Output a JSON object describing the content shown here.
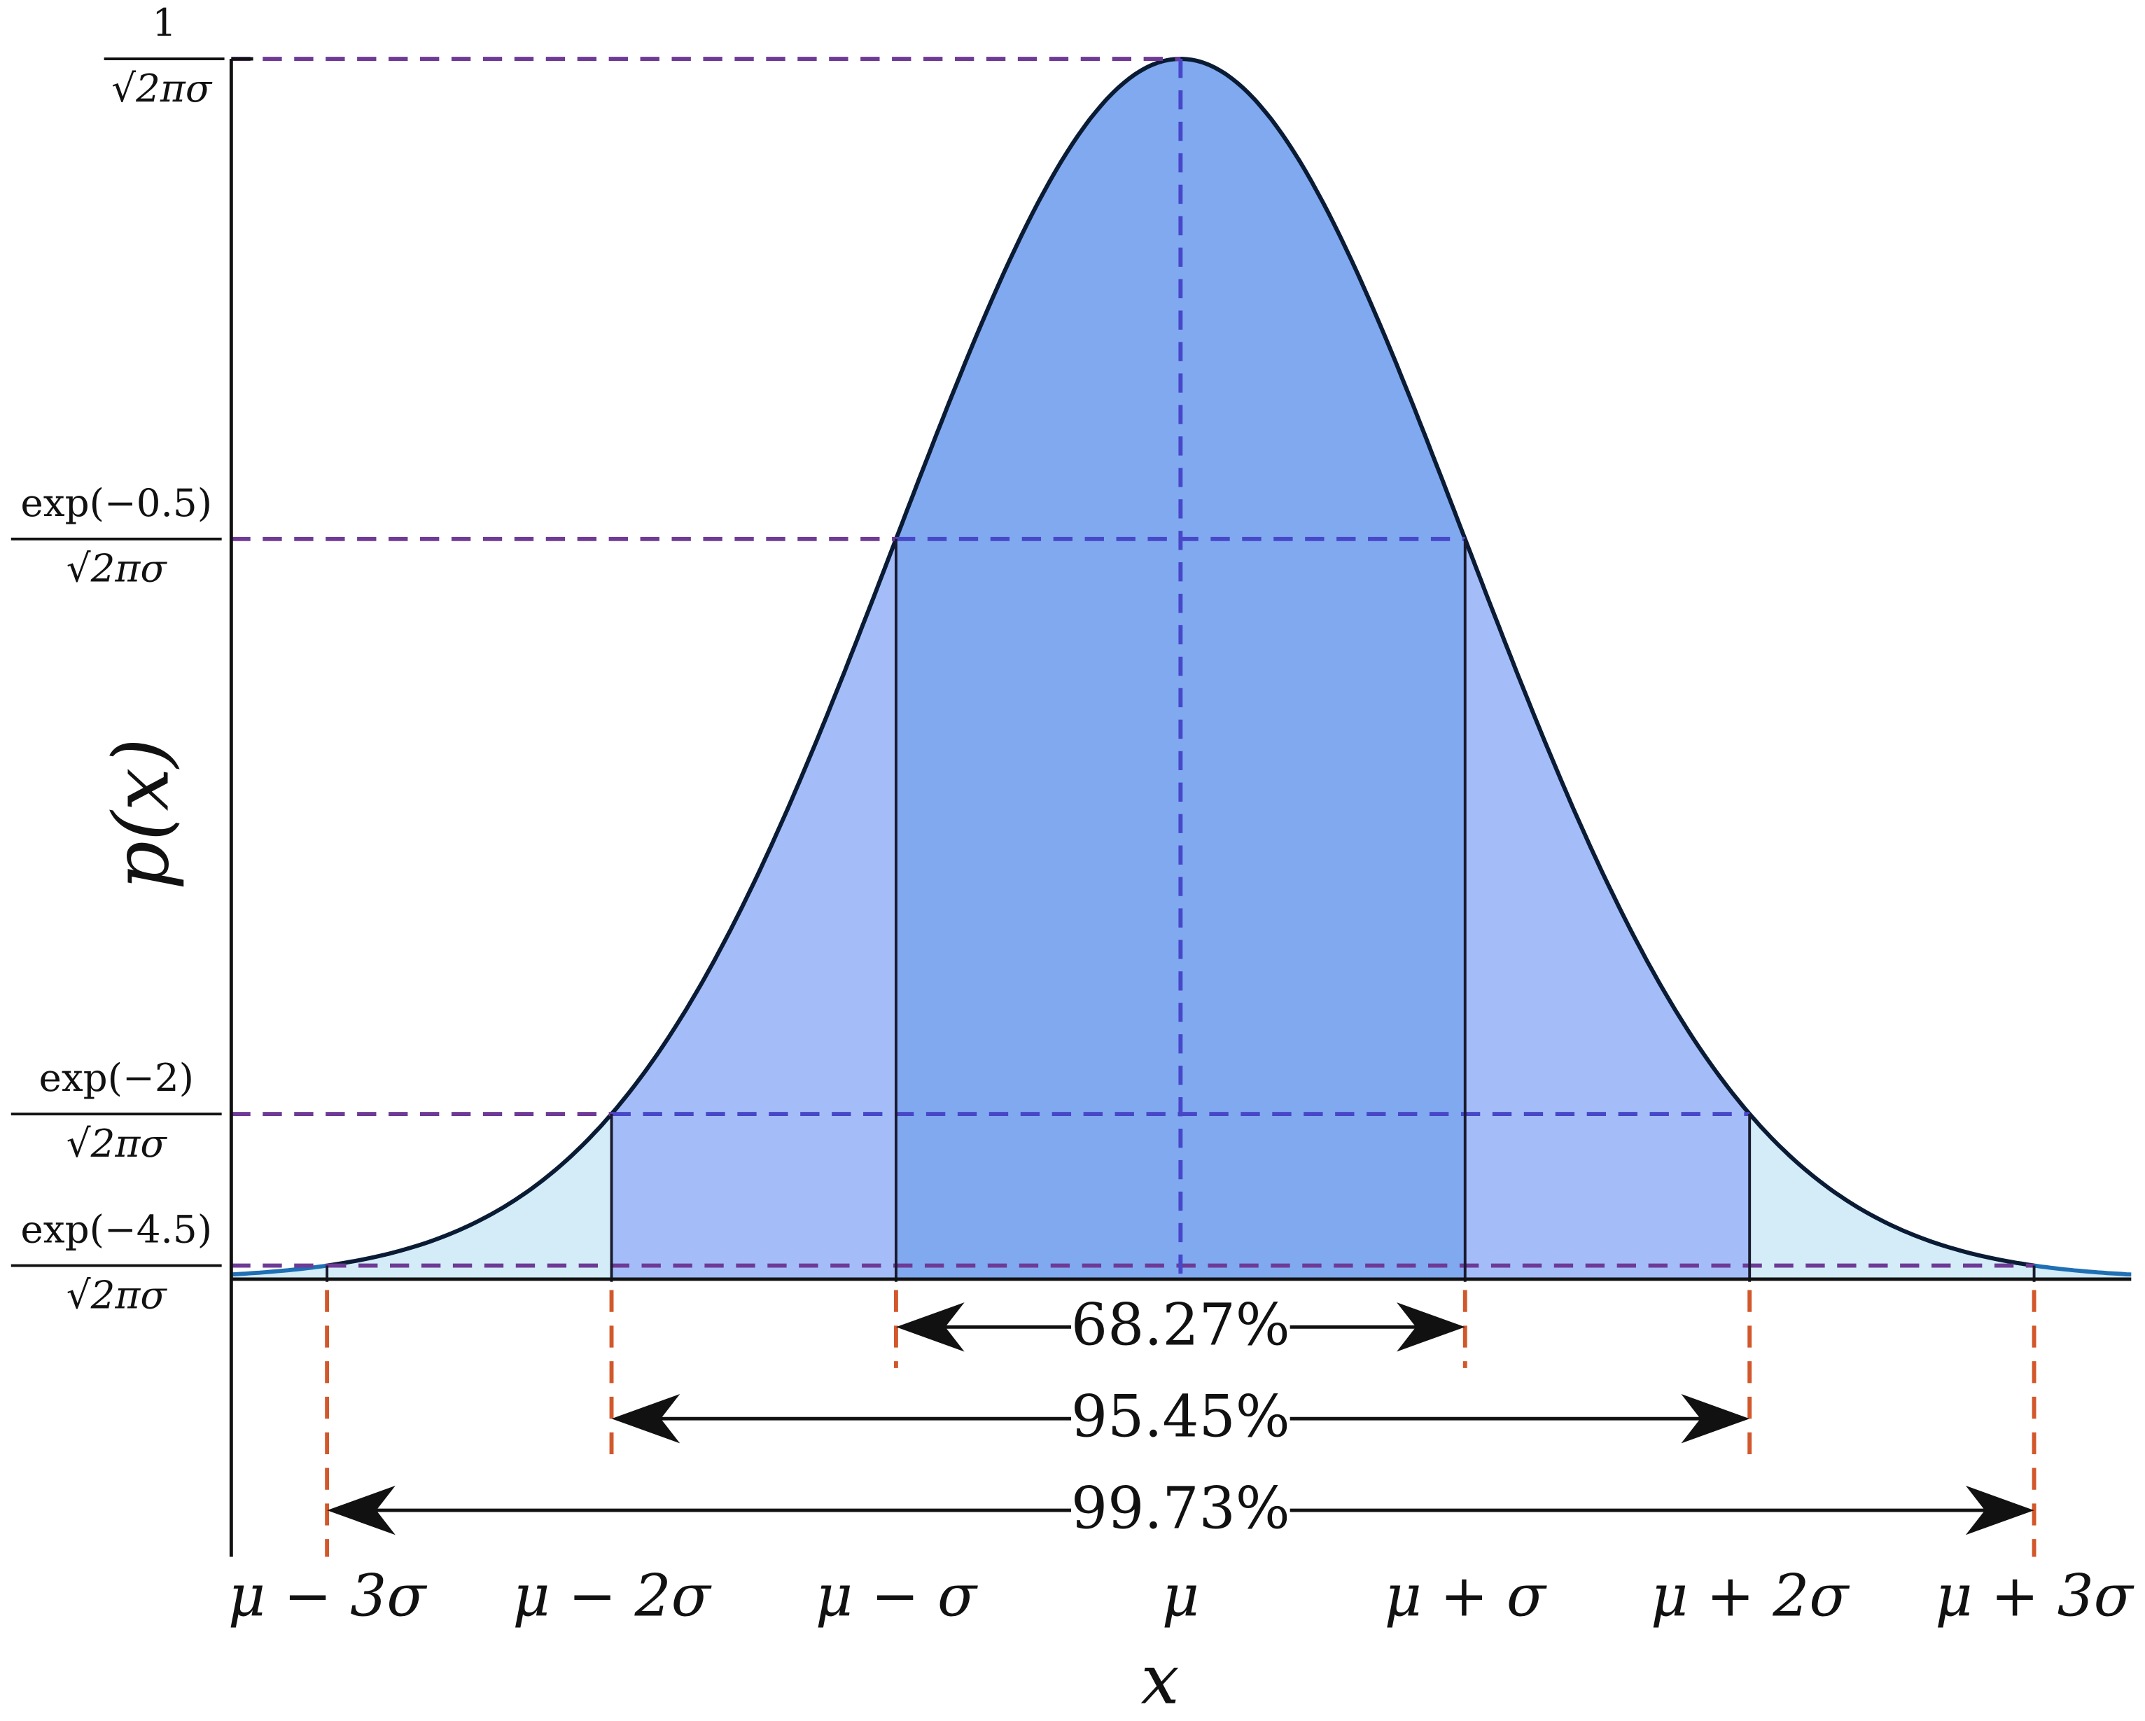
{
  "y_axis": {
    "label": "p(x)",
    "ticks": [
      {
        "numerator": "1",
        "denominator": "√2πσ"
      },
      {
        "numerator": "exp(−0.5)",
        "denominator": "√2πσ"
      },
      {
        "numerator": "exp(−2)",
        "denominator": "√2πσ"
      },
      {
        "numerator": "exp(−4.5)",
        "denominator": "√2πσ"
      }
    ]
  },
  "x_axis": {
    "label": "x",
    "ticks": [
      "μ − 3σ",
      "μ − 2σ",
      "μ − σ",
      "μ",
      "μ + σ",
      "μ + 2σ",
      "μ + 3σ"
    ]
  },
  "intervals": [
    "68.27%",
    "95.45%",
    "99.73%"
  ]
}
